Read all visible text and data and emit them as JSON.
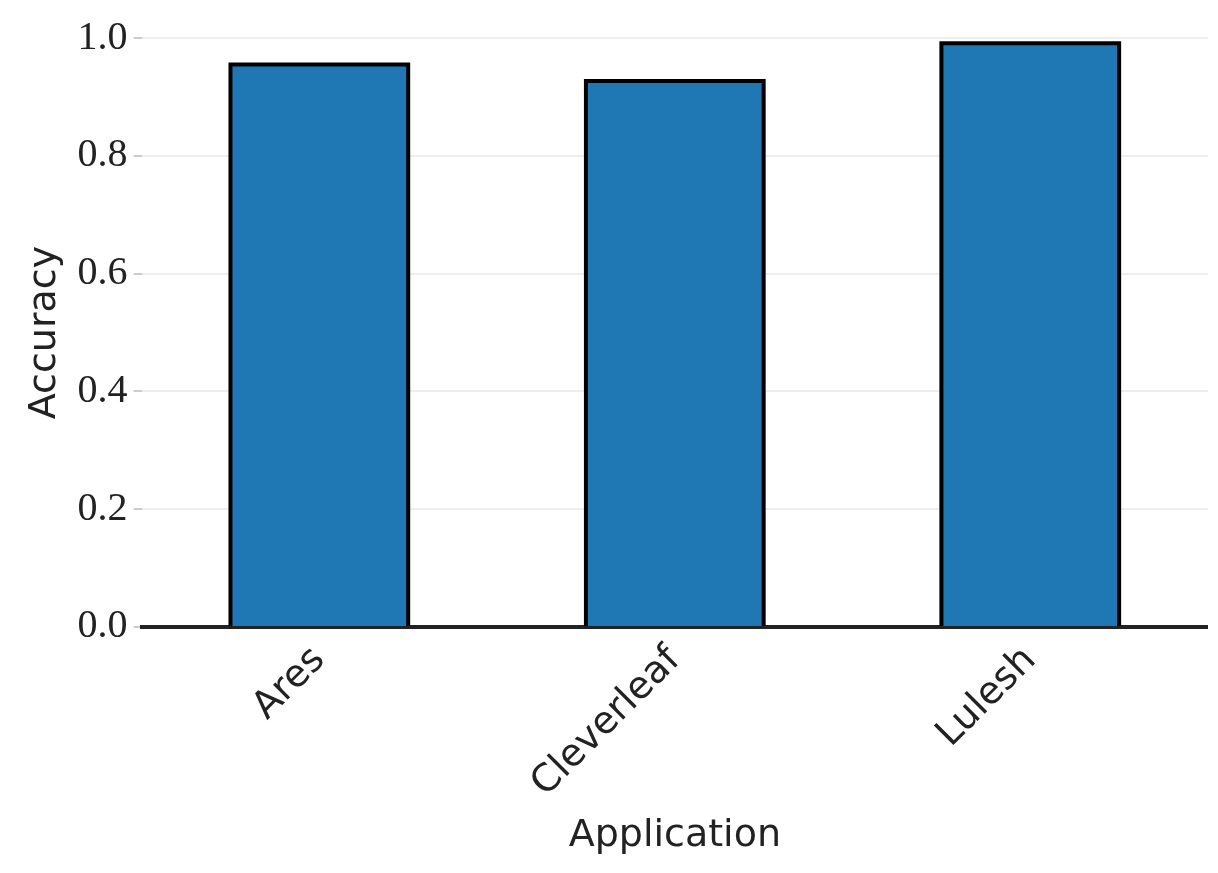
{
  "chart_data": {
    "type": "bar",
    "xlabel": "Application",
    "ylabel": "Accuracy",
    "categories": [
      "Ares",
      "Cleverleaf",
      "Lulesh"
    ],
    "values": [
      0.955,
      0.927,
      0.991
    ],
    "color": "#1f77b4",
    "ylim": [
      0,
      1.0
    ],
    "yticks": [
      {
        "value": 0,
        "label": "0.0"
      },
      {
        "value": 0.2,
        "label": "0.2"
      },
      {
        "value": 0.4,
        "label": "0.4"
      },
      {
        "value": 0.6,
        "label": "0.6"
      },
      {
        "value": 0.8,
        "label": "0.8"
      },
      {
        "value": 1.0,
        "label": "1.0"
      }
    ],
    "grid": "y",
    "legend": false
  }
}
